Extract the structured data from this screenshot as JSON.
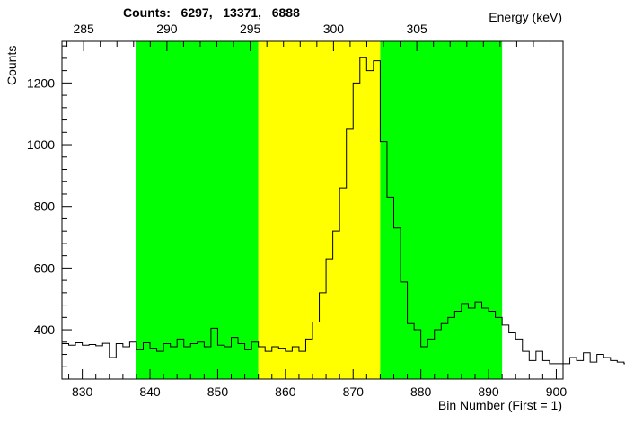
{
  "chart_data": {
    "type": "histogram",
    "title": "Counts:   6297,   13371,   6888",
    "xlabel": "Bin Number (First = 1)",
    "ylabel": "Counts",
    "top_axis_label": "Energy (keV)",
    "xlim": [
      827,
      901
    ],
    "ylim": [
      240,
      1335
    ],
    "x_ticks": [
      830,
      840,
      850,
      860,
      870,
      880,
      890,
      900
    ],
    "y_ticks": [
      400,
      600,
      800,
      1000,
      1200
    ],
    "top_axis": {
      "ticks": [
        {
          "label": "285",
          "bin": 830.2
        },
        {
          "label": "290",
          "bin": 842.5
        },
        {
          "label": "295",
          "bin": 854.8
        },
        {
          "label": "300",
          "bin": 867.1
        },
        {
          "label": "305",
          "bin": 879.4
        }
      ]
    },
    "regions": [
      {
        "from": 838,
        "to": 856,
        "color": "#00ff00",
        "counts": 6297
      },
      {
        "from": 856,
        "to": 874,
        "color": "#ffff00",
        "counts": 13371
      },
      {
        "from": 874,
        "to": 892,
        "color": "#00ff00",
        "counts": 6888
      }
    ],
    "bins_start": 827,
    "bin_width": 1,
    "values": [
      355,
      350,
      358,
      350,
      352,
      348,
      356,
      310,
      355,
      345,
      360,
      335,
      358,
      340,
      330,
      355,
      345,
      370,
      345,
      355,
      360,
      345,
      405,
      350,
      345,
      375,
      355,
      335,
      360,
      345,
      330,
      345,
      340,
      330,
      345,
      330,
      370,
      425,
      520,
      630,
      720,
      860,
      1050,
      1200,
      1282,
      1240,
      1272,
      1010,
      830,
      730,
      555,
      420,
      400,
      345,
      370,
      400,
      420,
      440,
      460,
      485,
      470,
      490,
      470,
      460,
      440,
      415,
      390,
      370,
      330,
      300,
      330,
      300,
      290,
      290,
      290,
      310,
      300,
      325,
      295,
      320,
      310,
      300,
      295,
      290
    ]
  }
}
